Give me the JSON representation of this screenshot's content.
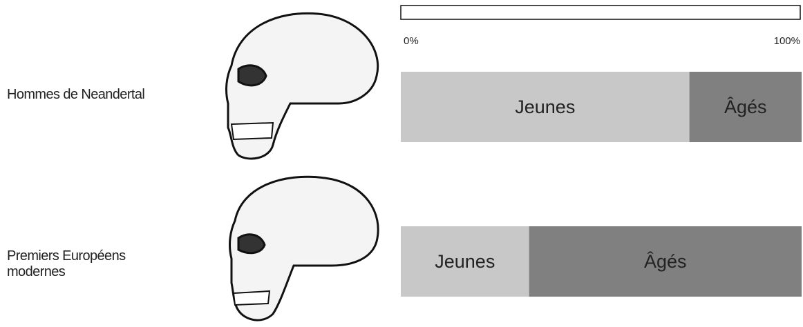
{
  "chart_data": {
    "type": "stacked-bar-horizontal",
    "categories": [
      "Hommes de Neandertal",
      "Premiers Européens modernes"
    ],
    "series": [
      {
        "name": "Jeunes",
        "color": "#c8c8c8",
        "values": [
          72,
          32
        ]
      },
      {
        "name": "Âgés",
        "color": "#808080",
        "values": [
          28,
          68
        ]
      }
    ],
    "xlim": [
      0,
      100
    ],
    "xticks": [
      {
        "value": 0,
        "label": "0%"
      },
      {
        "value": 100,
        "label": "100%"
      }
    ]
  }
}
